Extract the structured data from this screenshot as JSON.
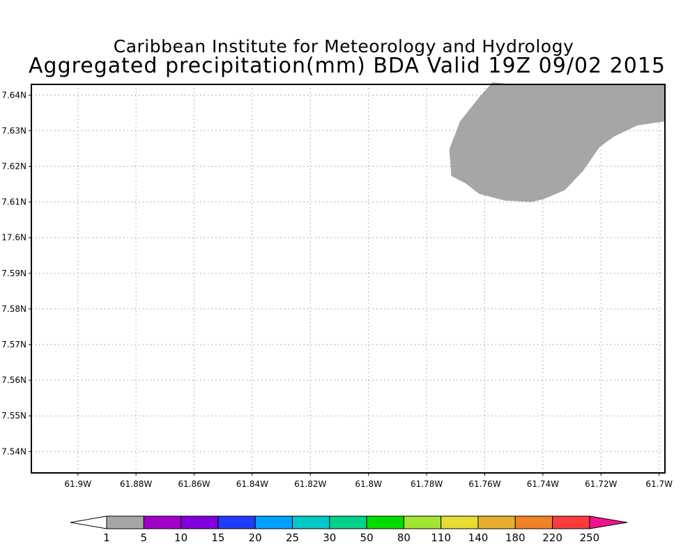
{
  "title": {
    "line1": "Caribbean Institute for Meteorology and Hydrology",
    "line2": "Aggregated precipitation(mm) BDA Valid 19Z 09/02 2015"
  },
  "map": {
    "lat_labels": [
      "7.64N",
      "7.63N",
      "7.62N",
      "7.61N",
      "17.6N",
      "7.59N",
      "7.58N",
      "7.57N",
      "7.56N",
      "7.55N",
      "7.54N"
    ],
    "lon_labels": [
      "61.9W",
      "61.88W",
      "61.86W",
      "61.84W",
      "61.82W",
      "61.8W",
      "61.78W",
      "61.76W",
      "61.74W",
      "61.72W",
      "61.7W"
    ],
    "lat_range": [
      17.534,
      17.643
    ],
    "lon_range": [
      -61.916,
      -61.698
    ],
    "grid_lats": [
      17.64,
      17.63,
      17.62,
      17.61,
      17.6,
      17.59,
      17.58,
      17.57,
      17.56,
      17.55,
      17.54
    ],
    "grid_lons": [
      -61.9,
      -61.88,
      -61.86,
      -61.84,
      -61.82,
      -61.8,
      -61.78,
      -61.76,
      -61.74,
      -61.72,
      -61.7
    ],
    "grid": "dotted",
    "precip_region": {
      "category": "1-5 mm",
      "color": "#a6a6a6",
      "polygon_lonlat": [
        [
          -61.7503,
          17.643
        ],
        [
          -61.698,
          17.643
        ],
        [
          -61.698,
          17.6326
        ],
        [
          -61.7075,
          17.6315
        ],
        [
          -61.7155,
          17.6284
        ],
        [
          -61.7205,
          17.6254
        ],
        [
          -61.7262,
          17.6187
        ],
        [
          -61.7325,
          17.6133
        ],
        [
          -61.7398,
          17.6108
        ],
        [
          -61.7438,
          17.61
        ],
        [
          -61.753,
          17.6104
        ],
        [
          -61.762,
          17.6123
        ],
        [
          -61.7665,
          17.6152
        ],
        [
          -61.7715,
          17.6173
        ],
        [
          -61.7722,
          17.6248
        ],
        [
          -61.7685,
          17.6326
        ],
        [
          -61.762,
          17.6393
        ],
        [
          -61.7573,
          17.6436
        ]
      ]
    }
  },
  "colorbar": {
    "labels": [
      "1",
      "5",
      "10",
      "15",
      "20",
      "25",
      "30",
      "50",
      "80",
      "110",
      "140",
      "180",
      "220",
      "250"
    ],
    "colors": [
      "#a6a6a6",
      "#a100c8",
      "#8200dc",
      "#1e3cff",
      "#00a0ff",
      "#00c8c8",
      "#00d28c",
      "#00dc00",
      "#a0e632",
      "#e6dc32",
      "#e6af2d",
      "#f08228",
      "#fa3c3c"
    ],
    "under_color": "#ffffff",
    "over_color": "#f0148c"
  }
}
